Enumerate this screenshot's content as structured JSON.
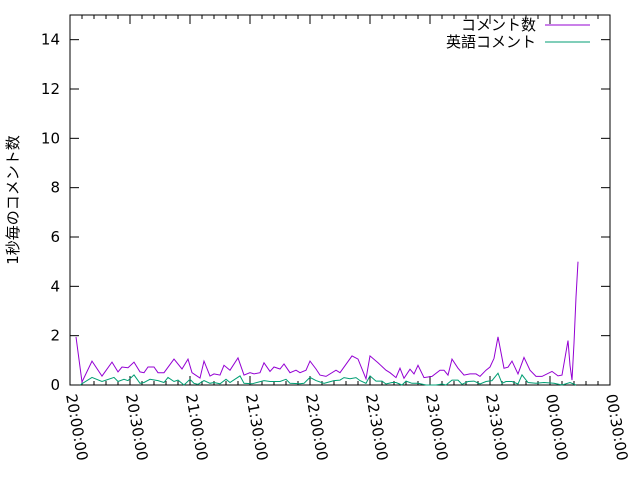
{
  "chart_data": {
    "type": "line",
    "title": "",
    "xlabel": "",
    "ylabel": "1秒毎のコメント数",
    "xlim": [
      "20:00:00",
      "00:30:00"
    ],
    "ylim": [
      0,
      15
    ],
    "x_tick_labels": [
      "20:00:00",
      "20:30:00",
      "21:00:00",
      "21:30:00",
      "22:00:00",
      "22:30:00",
      "23:00:00",
      "23:30:00",
      "00:00:00",
      "00:30:00"
    ],
    "y_tick_labels": [
      "0",
      "2",
      "4",
      "6",
      "8",
      "10",
      "12",
      "14"
    ],
    "grid": false,
    "legend_placement": "top-right",
    "series": [
      {
        "name": "コメント数",
        "color": "#9400d3",
        "points": [
          [
            "20:03",
            1.95
          ],
          [
            "20:06",
            0.12
          ],
          [
            "20:11",
            0.97
          ],
          [
            "20:16",
            0.36
          ],
          [
            "20:21",
            0.93
          ],
          [
            "20:24",
            0.53
          ],
          [
            "20:26",
            0.73
          ],
          [
            "20:29",
            0.7
          ],
          [
            "20:32",
            0.93
          ],
          [
            "20:35",
            0.53
          ],
          [
            "20:37",
            0.5
          ],
          [
            "20:39",
            0.73
          ],
          [
            "20:42",
            0.73
          ],
          [
            "20:44",
            0.5
          ],
          [
            "20:47",
            0.5
          ],
          [
            "20:52",
            1.05
          ],
          [
            "20:56",
            0.65
          ],
          [
            "20:59",
            1.05
          ],
          [
            "21:01",
            0.5
          ],
          [
            "21:05",
            0.28
          ],
          [
            "21:07",
            0.97
          ],
          [
            "21:10",
            0.36
          ],
          [
            "21:12",
            0.45
          ],
          [
            "21:15",
            0.4
          ],
          [
            "21:17",
            0.8
          ],
          [
            "21:20",
            0.6
          ],
          [
            "21:24",
            1.1
          ],
          [
            "21:27",
            0.4
          ],
          [
            "21:30",
            0.5
          ],
          [
            "21:32",
            0.45
          ],
          [
            "21:35",
            0.5
          ],
          [
            "21:37",
            0.9
          ],
          [
            "21:40",
            0.55
          ],
          [
            "21:42",
            0.73
          ],
          [
            "21:45",
            0.65
          ],
          [
            "21:47",
            0.85
          ],
          [
            "21:50",
            0.5
          ],
          [
            "21:53",
            0.6
          ],
          [
            "21:55",
            0.5
          ],
          [
            "21:58",
            0.6
          ],
          [
            "22:00",
            0.97
          ],
          [
            "22:03",
            0.65
          ],
          [
            "22:05",
            0.4
          ],
          [
            "22:08",
            0.35
          ],
          [
            "22:13",
            0.6
          ],
          [
            "22:15",
            0.5
          ],
          [
            "22:21",
            1.18
          ],
          [
            "22:24",
            1.05
          ],
          [
            "22:28",
            0.25
          ],
          [
            "22:30",
            1.18
          ],
          [
            "22:34",
            0.9
          ],
          [
            "22:38",
            0.6
          ],
          [
            "22:40",
            0.5
          ],
          [
            "22:43",
            0.3
          ],
          [
            "22:45",
            0.68
          ],
          [
            "22:47",
            0.27
          ],
          [
            "22:50",
            0.64
          ],
          [
            "22:52",
            0.45
          ],
          [
            "22:54",
            0.8
          ],
          [
            "22:57",
            0.3
          ],
          [
            "23:01",
            0.35
          ],
          [
            "23:05",
            0.6
          ],
          [
            "23:07",
            0.6
          ],
          [
            "23:09",
            0.4
          ],
          [
            "23:11",
            1.05
          ],
          [
            "23:14",
            0.68
          ],
          [
            "23:17",
            0.4
          ],
          [
            "23:20",
            0.45
          ],
          [
            "23:23",
            0.45
          ],
          [
            "23:25",
            0.35
          ],
          [
            "23:28",
            0.6
          ],
          [
            "23:30",
            0.73
          ],
          [
            "23:32",
            1.08
          ],
          [
            "23:34",
            1.95
          ],
          [
            "23:37",
            0.68
          ],
          [
            "23:39",
            0.72
          ],
          [
            "23:41",
            0.97
          ],
          [
            "23:44",
            0.45
          ],
          [
            "23:47",
            1.12
          ],
          [
            "23:50",
            0.6
          ],
          [
            "23:53",
            0.35
          ],
          [
            "23:56",
            0.35
          ],
          [
            "00:01",
            0.55
          ],
          [
            "00:04",
            0.37
          ],
          [
            "00:06",
            0.4
          ],
          [
            "00:09",
            1.8
          ],
          [
            "00:10",
            0.8
          ],
          [
            "00:11",
            0.2
          ],
          [
            "00:12",
            1.7
          ],
          [
            "00:13",
            3.56
          ],
          [
            "00:14",
            5.0
          ]
        ]
      },
      {
        "name": "英語コメント",
        "color": "#009e73",
        "points": [
          [
            "20:05",
            0
          ],
          [
            "20:11",
            0.31
          ],
          [
            "20:16",
            0.14
          ],
          [
            "20:22",
            0.31
          ],
          [
            "20:24",
            0.14
          ],
          [
            "20:27",
            0.23
          ],
          [
            "20:29",
            0.18
          ],
          [
            "20:32",
            0.41
          ],
          [
            "20:35",
            0.07
          ],
          [
            "20:37",
            0.1
          ],
          [
            "20:40",
            0.23
          ],
          [
            "20:44",
            0.18
          ],
          [
            "20:47",
            0.1
          ],
          [
            "20:49",
            0.31
          ],
          [
            "20:52",
            0.14
          ],
          [
            "20:54",
            0.2
          ],
          [
            "20:57",
            0
          ],
          [
            "21:00",
            0.23
          ],
          [
            "21:02",
            0.07
          ],
          [
            "21:04",
            0.03
          ],
          [
            "21:07",
            0.18
          ],
          [
            "21:10",
            0.07
          ],
          [
            "21:12",
            0.1
          ],
          [
            "21:15",
            0.05
          ],
          [
            "21:18",
            0.23
          ],
          [
            "21:20",
            0.1
          ],
          [
            "21:25",
            0.37
          ],
          [
            "21:27",
            0.07
          ],
          [
            "21:31",
            0.05
          ],
          [
            "21:37",
            0.18
          ],
          [
            "21:40",
            0.14
          ],
          [
            "21:45",
            0.14
          ],
          [
            "21:48",
            0.23
          ],
          [
            "21:50",
            0.07
          ],
          [
            "21:55",
            0.05
          ],
          [
            "21:57",
            0.07
          ],
          [
            "22:00",
            0.31
          ],
          [
            "22:03",
            0.18
          ],
          [
            "22:07",
            0.07
          ],
          [
            "22:12",
            0.18
          ],
          [
            "22:15",
            0.2
          ],
          [
            "22:17",
            0.3
          ],
          [
            "22:20",
            0.25
          ],
          [
            "22:23",
            0.3
          ],
          [
            "22:25",
            0.18
          ],
          [
            "22:28",
            0.07
          ],
          [
            "22:30",
            0.37
          ],
          [
            "22:33",
            0.16
          ],
          [
            "22:36",
            0.16
          ],
          [
            "22:38",
            0.04
          ],
          [
            "22:41",
            0.1
          ],
          [
            "22:43",
            0.1
          ],
          [
            "22:46",
            0
          ],
          [
            "22:48",
            0.16
          ],
          [
            "22:51",
            0.07
          ],
          [
            "22:54",
            0.07
          ],
          [
            "22:58",
            0
          ],
          [
            "23:03",
            0
          ],
          [
            "23:06",
            0.04
          ],
          [
            "23:08",
            0
          ],
          [
            "23:11",
            0.2
          ],
          [
            "23:14",
            0.2
          ],
          [
            "23:16",
            0.03
          ],
          [
            "23:19",
            0.14
          ],
          [
            "23:22",
            0.16
          ],
          [
            "23:25",
            0.04
          ],
          [
            "23:28",
            0.14
          ],
          [
            "23:31",
            0.18
          ],
          [
            "23:34",
            0.48
          ],
          [
            "23:36",
            0.07
          ],
          [
            "23:38",
            0.14
          ],
          [
            "23:41",
            0.14
          ],
          [
            "23:44",
            0.04
          ],
          [
            "23:46",
            0.41
          ],
          [
            "23:49",
            0.1
          ],
          [
            "23:53",
            0.07
          ],
          [
            "23:57",
            0.1
          ],
          [
            "00:02",
            0.07
          ],
          [
            "00:06",
            0
          ],
          [
            "00:10",
            0.1
          ],
          [
            "00:13",
            0
          ]
        ]
      }
    ]
  }
}
